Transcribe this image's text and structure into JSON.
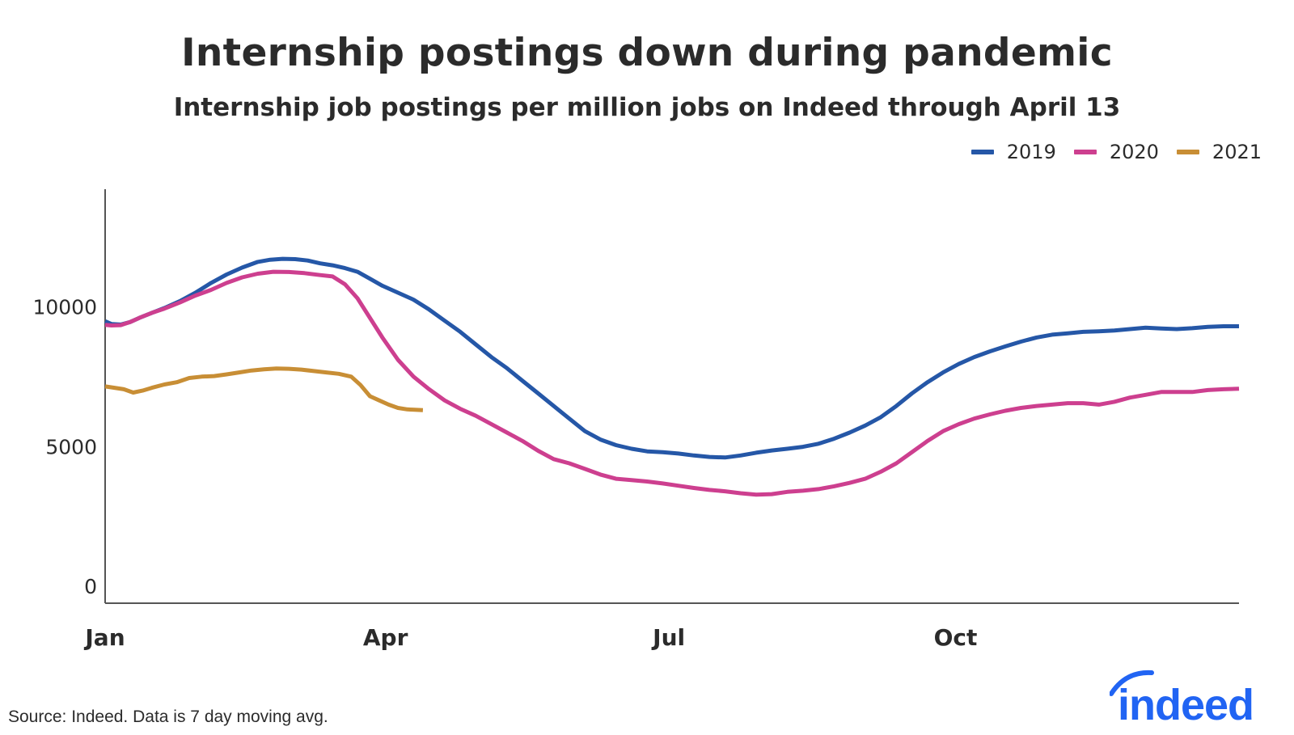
{
  "title": "Internship postings down during pandemic",
  "subtitle": "Internship job postings per million jobs on Indeed through April 13",
  "source": "Source: Indeed. Data is 7 day moving avg.",
  "logo_text": "indeed",
  "chart_data": {
    "type": "line",
    "title": "Internship postings down during pandemic",
    "subtitle": "Internship job postings per million jobs on Indeed through April 13",
    "xlabel": "",
    "ylabel": "",
    "x_unit": "day_of_year",
    "xlim": [
      1,
      365
    ],
    "ylim": [
      -600,
      14200
    ],
    "x_ticks": [
      {
        "label": "Jan",
        "x": 1
      },
      {
        "label": "Apr",
        "x": 91
      },
      {
        "label": "Jul",
        "x": 182
      },
      {
        "label": "Oct",
        "x": 274
      }
    ],
    "y_ticks": [
      0,
      5000,
      10000
    ],
    "grid": false,
    "legend_position": "top-right",
    "series": [
      {
        "name": "2019",
        "color": "#2557a7",
        "points": [
          [
            1,
            9480
          ],
          [
            3,
            9380
          ],
          [
            6,
            9360
          ],
          [
            9,
            9450
          ],
          [
            12,
            9600
          ],
          [
            16,
            9780
          ],
          [
            20,
            9950
          ],
          [
            25,
            10200
          ],
          [
            30,
            10500
          ],
          [
            35,
            10850
          ],
          [
            40,
            11150
          ],
          [
            45,
            11400
          ],
          [
            50,
            11600
          ],
          [
            54,
            11680
          ],
          [
            58,
            11710
          ],
          [
            62,
            11700
          ],
          [
            66,
            11650
          ],
          [
            70,
            11550
          ],
          [
            74,
            11480
          ],
          [
            78,
            11380
          ],
          [
            82,
            11250
          ],
          [
            86,
            11000
          ],
          [
            90,
            10750
          ],
          [
            95,
            10500
          ],
          [
            100,
            10250
          ],
          [
            105,
            9900
          ],
          [
            110,
            9500
          ],
          [
            115,
            9100
          ],
          [
            120,
            8650
          ],
          [
            125,
            8200
          ],
          [
            130,
            7800
          ],
          [
            135,
            7350
          ],
          [
            140,
            6900
          ],
          [
            145,
            6450
          ],
          [
            150,
            6000
          ],
          [
            155,
            5550
          ],
          [
            160,
            5250
          ],
          [
            165,
            5050
          ],
          [
            170,
            4920
          ],
          [
            175,
            4830
          ],
          [
            180,
            4800
          ],
          [
            185,
            4750
          ],
          [
            190,
            4680
          ],
          [
            195,
            4630
          ],
          [
            200,
            4610
          ],
          [
            205,
            4680
          ],
          [
            210,
            4780
          ],
          [
            215,
            4860
          ],
          [
            220,
            4920
          ],
          [
            225,
            4990
          ],
          [
            230,
            5100
          ],
          [
            235,
            5280
          ],
          [
            240,
            5500
          ],
          [
            245,
            5750
          ],
          [
            250,
            6050
          ],
          [
            255,
            6450
          ],
          [
            260,
            6900
          ],
          [
            265,
            7300
          ],
          [
            270,
            7650
          ],
          [
            275,
            7950
          ],
          [
            280,
            8200
          ],
          [
            285,
            8400
          ],
          [
            290,
            8580
          ],
          [
            295,
            8750
          ],
          [
            300,
            8900
          ],
          [
            305,
            9000
          ],
          [
            310,
            9050
          ],
          [
            315,
            9100
          ],
          [
            320,
            9120
          ],
          [
            325,
            9150
          ],
          [
            330,
            9200
          ],
          [
            335,
            9250
          ],
          [
            340,
            9220
          ],
          [
            345,
            9200
          ],
          [
            350,
            9230
          ],
          [
            355,
            9280
          ],
          [
            360,
            9300
          ],
          [
            365,
            9300
          ]
        ]
      },
      {
        "name": "2020",
        "color": "#cd3f8f",
        "points": [
          [
            1,
            9350
          ],
          [
            3,
            9330
          ],
          [
            6,
            9340
          ],
          [
            9,
            9450
          ],
          [
            12,
            9600
          ],
          [
            16,
            9780
          ],
          [
            20,
            9930
          ],
          [
            25,
            10150
          ],
          [
            30,
            10400
          ],
          [
            35,
            10600
          ],
          [
            40,
            10850
          ],
          [
            45,
            11050
          ],
          [
            50,
            11180
          ],
          [
            55,
            11250
          ],
          [
            60,
            11240
          ],
          [
            65,
            11200
          ],
          [
            70,
            11130
          ],
          [
            74,
            11080
          ],
          [
            78,
            10800
          ],
          [
            82,
            10300
          ],
          [
            86,
            9600
          ],
          [
            90,
            8900
          ],
          [
            95,
            8100
          ],
          [
            100,
            7500
          ],
          [
            105,
            7050
          ],
          [
            110,
            6650
          ],
          [
            115,
            6350
          ],
          [
            120,
            6100
          ],
          [
            125,
            5800
          ],
          [
            130,
            5500
          ],
          [
            135,
            5200
          ],
          [
            140,
            4850
          ],
          [
            145,
            4550
          ],
          [
            150,
            4400
          ],
          [
            155,
            4200
          ],
          [
            160,
            4000
          ],
          [
            165,
            3850
          ],
          [
            170,
            3800
          ],
          [
            175,
            3750
          ],
          [
            180,
            3680
          ],
          [
            185,
            3600
          ],
          [
            190,
            3520
          ],
          [
            195,
            3450
          ],
          [
            200,
            3400
          ],
          [
            205,
            3330
          ],
          [
            210,
            3280
          ],
          [
            215,
            3300
          ],
          [
            220,
            3380
          ],
          [
            225,
            3420
          ],
          [
            230,
            3480
          ],
          [
            235,
            3580
          ],
          [
            240,
            3700
          ],
          [
            245,
            3850
          ],
          [
            250,
            4100
          ],
          [
            255,
            4400
          ],
          [
            260,
            4800
          ],
          [
            265,
            5200
          ],
          [
            270,
            5550
          ],
          [
            275,
            5800
          ],
          [
            280,
            6000
          ],
          [
            285,
            6150
          ],
          [
            290,
            6280
          ],
          [
            295,
            6380
          ],
          [
            300,
            6450
          ],
          [
            305,
            6500
          ],
          [
            310,
            6550
          ],
          [
            315,
            6550
          ],
          [
            320,
            6500
          ],
          [
            325,
            6600
          ],
          [
            330,
            6750
          ],
          [
            335,
            6850
          ],
          [
            340,
            6950
          ],
          [
            345,
            6950
          ],
          [
            350,
            6950
          ],
          [
            355,
            7020
          ],
          [
            360,
            7050
          ],
          [
            365,
            7070
          ]
        ]
      },
      {
        "name": "2021",
        "color": "#c88e35",
        "points": [
          [
            1,
            7150
          ],
          [
            4,
            7100
          ],
          [
            7,
            7050
          ],
          [
            10,
            6930
          ],
          [
            13,
            7000
          ],
          [
            16,
            7100
          ],
          [
            20,
            7220
          ],
          [
            24,
            7300
          ],
          [
            28,
            7450
          ],
          [
            32,
            7500
          ],
          [
            36,
            7520
          ],
          [
            40,
            7580
          ],
          [
            44,
            7650
          ],
          [
            48,
            7720
          ],
          [
            52,
            7760
          ],
          [
            56,
            7790
          ],
          [
            60,
            7780
          ],
          [
            64,
            7750
          ],
          [
            68,
            7700
          ],
          [
            72,
            7650
          ],
          [
            76,
            7600
          ],
          [
            80,
            7500
          ],
          [
            83,
            7200
          ],
          [
            86,
            6800
          ],
          [
            89,
            6650
          ],
          [
            92,
            6500
          ],
          [
            95,
            6380
          ],
          [
            98,
            6330
          ],
          [
            103,
            6300
          ]
        ]
      }
    ]
  }
}
